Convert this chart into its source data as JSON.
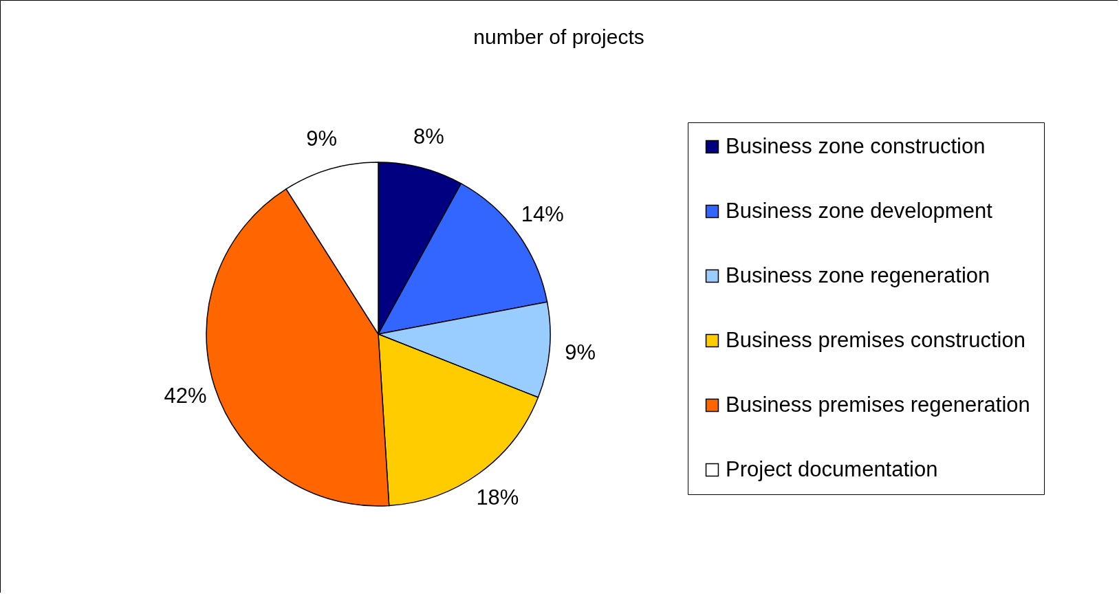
{
  "chart_data": {
    "type": "pie",
    "title": "number of projects",
    "categories": [
      "Business zone  construction",
      "Business zone  development",
      "Business zone  regeneration",
      "Business premises construction",
      "Business premises regeneration",
      "Project documentation"
    ],
    "values": [
      8,
      14,
      9,
      18,
      42,
      9
    ],
    "colors": [
      "#000080",
      "#3366ff",
      "#99ccff",
      "#ffcc00",
      "#ff6600",
      "#ffffff"
    ],
    "value_labels": [
      "8%",
      "14%",
      "9%",
      "18%",
      "42%",
      "9%"
    ],
    "legend": "right"
  }
}
